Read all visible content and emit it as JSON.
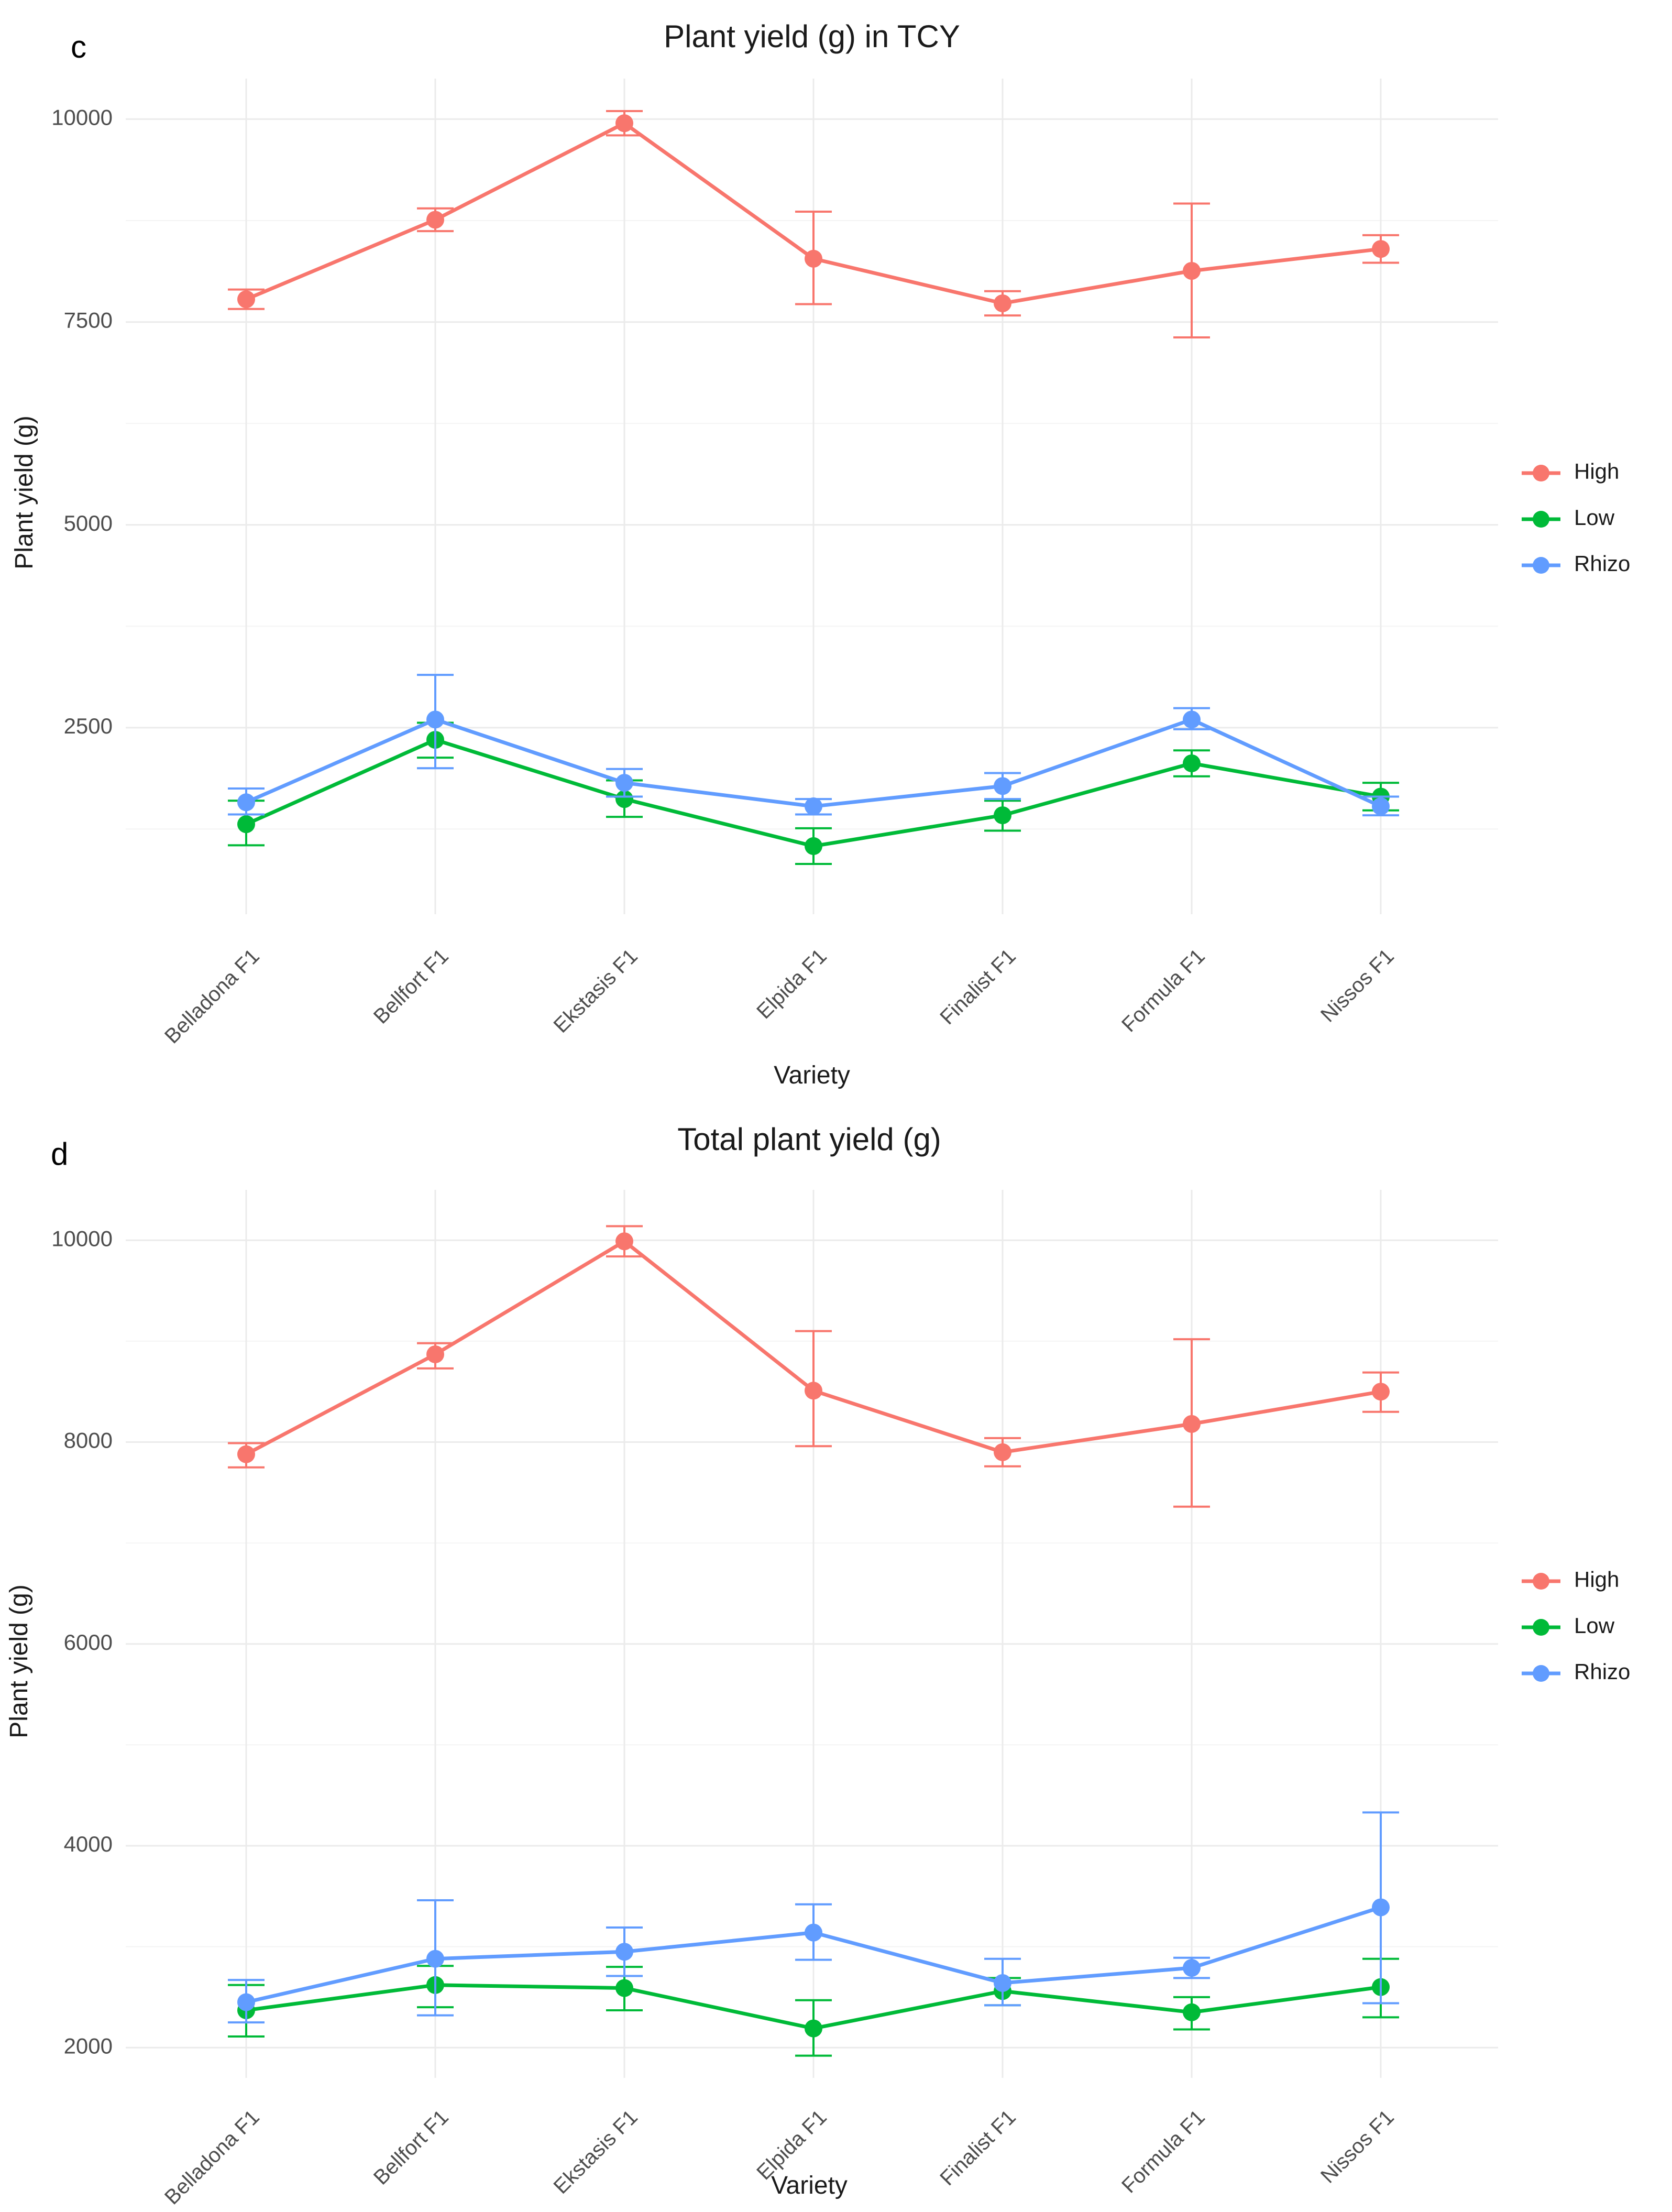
{
  "chart_data": [
    {
      "panel_label": "c",
      "type": "line",
      "title": "Plant yield (g) in TCY",
      "xlabel": "Variety",
      "ylabel": "Plant yield (g)",
      "ylim": [
        200,
        10500
      ],
      "yticks": [
        2500,
        5000,
        7500,
        10000
      ],
      "categories": [
        "Belladona F1",
        "Bellfort F1",
        "Ekstasis F1",
        "Elpida F1",
        "Finalist F1",
        "Formula F1",
        "Nissos F1"
      ],
      "legend_position": "right",
      "series": [
        {
          "name": "High",
          "color": "#F8766D",
          "values": [
            7780,
            8760,
            9950,
            8280,
            7730,
            8130,
            8400
          ],
          "err_low": [
            7660,
            8620,
            9800,
            7720,
            7580,
            7310,
            8230
          ],
          "err_high": [
            7900,
            8900,
            10100,
            8860,
            7880,
            8960,
            8570
          ]
        },
        {
          "name": "Low",
          "color": "#00BA38",
          "values": [
            1310,
            2350,
            1620,
            1040,
            1420,
            2060,
            1650
          ],
          "err_low": [
            1050,
            2130,
            1400,
            820,
            1230,
            1900,
            1480
          ],
          "err_high": [
            1600,
            2560,
            1850,
            1260,
            1600,
            2220,
            1820
          ]
        },
        {
          "name": "Rhizo",
          "color": "#619CFF",
          "values": [
            1580,
            2600,
            1820,
            1530,
            1780,
            2600,
            1530
          ],
          "err_low": [
            1430,
            2000,
            1650,
            1430,
            1620,
            2480,
            1420
          ],
          "err_high": [
            1750,
            3150,
            1990,
            1620,
            1940,
            2740,
            1650
          ]
        }
      ]
    },
    {
      "panel_label": "d",
      "type": "line",
      "title": "Total plant yield (g)",
      "xlabel": "Variety",
      "ylabel": "Plant yield (g)",
      "ylim": [
        1700,
        10500
      ],
      "yticks": [
        2000,
        4000,
        6000,
        8000,
        10000
      ],
      "categories": [
        "Belladona F1",
        "Bellfort F1",
        "Ekstasis F1",
        "Elpida F1",
        "Finalist F1",
        "Formula F1",
        "Nissos F1"
      ],
      "legend_position": "right",
      "series": [
        {
          "name": "High",
          "color": "#F8766D",
          "values": [
            7880,
            8870,
            9990,
            8510,
            7900,
            8180,
            8500
          ],
          "err_low": [
            7750,
            8730,
            9840,
            7960,
            7760,
            7360,
            8300
          ],
          "err_high": [
            7990,
            8980,
            10140,
            9100,
            8040,
            9020,
            8690
          ]
        },
        {
          "name": "Low",
          "color": "#00BA38",
          "values": [
            2370,
            2620,
            2590,
            2190,
            2560,
            2350,
            2600
          ],
          "err_low": [
            2110,
            2400,
            2370,
            1920,
            2420,
            2180,
            2300
          ],
          "err_high": [
            2620,
            2810,
            2800,
            2470,
            2690,
            2500,
            2880
          ]
        },
        {
          "name": "Rhizo",
          "color": "#619CFF",
          "values": [
            2450,
            2880,
            2950,
            3140,
            2640,
            2790,
            3390
          ],
          "err_low": [
            2250,
            2320,
            2710,
            2870,
            2420,
            2690,
            2440
          ],
          "err_high": [
            2670,
            3460,
            3190,
            3420,
            2880,
            2890,
            4330
          ]
        }
      ]
    }
  ]
}
